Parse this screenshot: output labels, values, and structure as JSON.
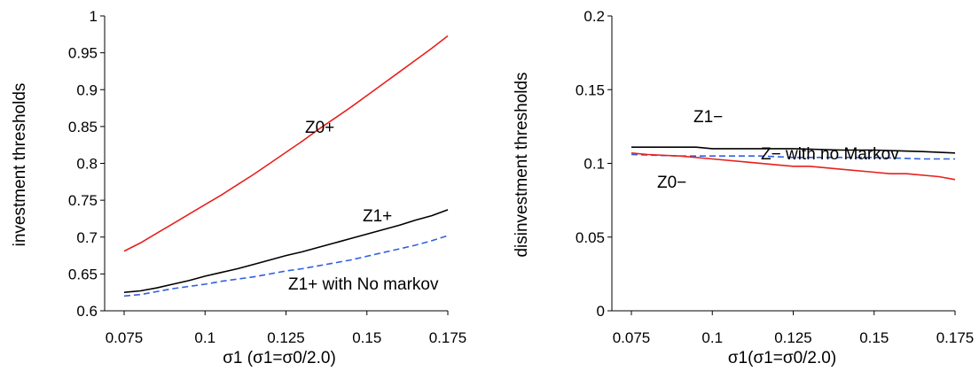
{
  "chart_data": [
    {
      "type": "line",
      "ylabel": "investment thresholds",
      "xlabel": "σ1 (σ1=σ0/2.0)",
      "xlim": [
        0.075,
        0.175
      ],
      "ylim": [
        0.6,
        1.0
      ],
      "xticks": [
        "0.075",
        "0.1",
        "0.125",
        "0.15",
        "0.175"
      ],
      "yticks": [
        "0.6",
        "0.65",
        "0.7",
        "0.75",
        "0.8",
        "0.85",
        "0.9",
        "0.95",
        "1"
      ],
      "grid": false,
      "annotations": [
        "Z0+",
        "Z1+",
        "Z1+ with No markov"
      ],
      "series": [
        {
          "color": "#e8201c",
          "dash": "solid",
          "x": [
            0.075,
            0.08,
            0.085,
            0.09,
            0.095,
            0.1,
            0.105,
            0.11,
            0.115,
            0.12,
            0.125,
            0.13,
            0.135,
            0.14,
            0.145,
            0.15,
            0.155,
            0.16,
            0.165,
            0.17,
            0.175
          ],
          "y": [
            0.681,
            0.692,
            0.705,
            0.718,
            0.731,
            0.744,
            0.757,
            0.771,
            0.785,
            0.8,
            0.815,
            0.83,
            0.846,
            0.861,
            0.876,
            0.892,
            0.908,
            0.924,
            0.94,
            0.956,
            0.973
          ]
        },
        {
          "color": "#000000",
          "dash": "solid",
          "x": [
            0.075,
            0.08,
            0.085,
            0.09,
            0.095,
            0.1,
            0.105,
            0.11,
            0.115,
            0.12,
            0.125,
            0.13,
            0.135,
            0.14,
            0.145,
            0.15,
            0.155,
            0.16,
            0.165,
            0.17,
            0.175
          ],
          "y": [
            0.625,
            0.627,
            0.631,
            0.636,
            0.641,
            0.647,
            0.652,
            0.657,
            0.663,
            0.669,
            0.675,
            0.68,
            0.686,
            0.692,
            0.698,
            0.704,
            0.71,
            0.716,
            0.723,
            0.729,
            0.737
          ]
        },
        {
          "color": "#3060e0",
          "dash": "dashed",
          "x": [
            0.075,
            0.08,
            0.085,
            0.09,
            0.095,
            0.1,
            0.105,
            0.11,
            0.115,
            0.12,
            0.125,
            0.13,
            0.135,
            0.14,
            0.145,
            0.15,
            0.155,
            0.16,
            0.165,
            0.17,
            0.175
          ],
          "y": [
            0.62,
            0.622,
            0.626,
            0.63,
            0.633,
            0.636,
            0.64,
            0.643,
            0.646,
            0.65,
            0.654,
            0.657,
            0.661,
            0.665,
            0.669,
            0.674,
            0.679,
            0.684,
            0.689,
            0.695,
            0.702
          ]
        }
      ]
    },
    {
      "type": "line",
      "ylabel": "disinvestment thresholds",
      "xlabel": "σ1(σ1=σ0/2.0)",
      "xlim": [
        0.075,
        0.175
      ],
      "ylim": [
        0.0,
        0.2
      ],
      "xticks": [
        "0.075",
        "0.1",
        "0.125",
        "0.15",
        "0.175"
      ],
      "yticks": [
        "0",
        "0.05",
        "0.1",
        "0.15",
        "0.2"
      ],
      "grid": false,
      "annotations": [
        "Z1−",
        "Z− with no Markov",
        "Z0−"
      ],
      "series": [
        {
          "color": "#000000",
          "dash": "solid",
          "x": [
            0.075,
            0.095,
            0.1,
            0.115,
            0.125,
            0.14,
            0.15,
            0.165,
            0.175
          ],
          "y": [
            0.111,
            0.111,
            0.11,
            0.11,
            0.11,
            0.109,
            0.109,
            0.108,
            0.107
          ]
        },
        {
          "color": "#3060e0",
          "dash": "dashed",
          "x": [
            0.075,
            0.09,
            0.1,
            0.115,
            0.125,
            0.14,
            0.15,
            0.165,
            0.175
          ],
          "y": [
            0.106,
            0.105,
            0.105,
            0.105,
            0.104,
            0.104,
            0.104,
            0.103,
            0.103
          ]
        },
        {
          "color": "#e8201c",
          "dash": "solid",
          "x": [
            0.075,
            0.08,
            0.09,
            0.1,
            0.11,
            0.12,
            0.125,
            0.13,
            0.14,
            0.15,
            0.155,
            0.16,
            0.17,
            0.175
          ],
          "y": [
            0.107,
            0.106,
            0.105,
            0.103,
            0.101,
            0.099,
            0.098,
            0.098,
            0.096,
            0.094,
            0.093,
            0.093,
            0.091,
            0.089
          ]
        }
      ]
    }
  ]
}
